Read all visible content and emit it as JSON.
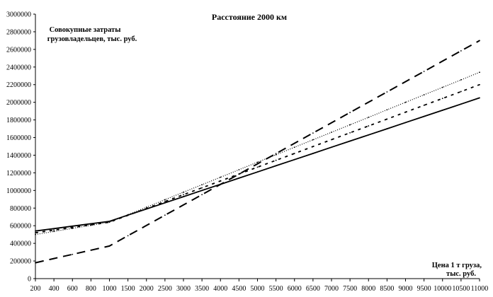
{
  "chart_data": {
    "type": "line",
    "title": "Расстояние 2000 км",
    "ylabel": [
      "Совокупные затраты",
      "грузовладельцев, тыс. руб."
    ],
    "xlabel": [
      "Цена 1 т груза,",
      "тыс. руб."
    ],
    "ylim": [
      0,
      3000000
    ],
    "ytick_step": 200000,
    "yticks": [
      "0",
      "200000",
      "400000",
      "600000",
      "800000",
      "1000000",
      "1200000",
      "1400000",
      "1600000",
      "1800000",
      "2000000",
      "2200000",
      "2400000",
      "2600000",
      "2800000",
      "3000000"
    ],
    "categories": [
      "200",
      "400",
      "600",
      "800",
      "1000",
      "1500",
      "2000",
      "2500",
      "3000",
      "3500",
      "4000",
      "4500",
      "5000",
      "5500",
      "6000",
      "6500",
      "7000",
      "7500",
      "8000",
      "8500",
      "9000",
      "9500",
      "10000",
      "10500",
      "11000"
    ],
    "grid": false,
    "legend": "none",
    "series": [
      {
        "name": "solid",
        "style": "solid",
        "values": [
          540000,
          567500,
          595000,
          622500,
          650000,
          720000,
          790000,
          860000,
          930000,
          1000000,
          1070000,
          1140000,
          1210000,
          1280000,
          1350000,
          1420000,
          1490000,
          1560000,
          1630000,
          1700000,
          1770000,
          1840000,
          1910000,
          1980000,
          2050000
        ]
      },
      {
        "name": "dotted",
        "style": "dotted",
        "values": [
          500000,
          535000,
          570000,
          605000,
          640000,
          725000,
          810000,
          895000,
          980000,
          1065000,
          1150000,
          1235000,
          1320000,
          1405000,
          1490000,
          1575000,
          1660000,
          1745000,
          1830000,
          1915000,
          2000000,
          2085000,
          2170000,
          2255000,
          2340000
        ]
      },
      {
        "name": "short-dash",
        "style": "short-dash",
        "values": [
          520000,
          550000,
          580000,
          610000,
          640000,
          718000,
          796000,
          874000,
          952000,
          1030000,
          1108000,
          1186000,
          1264000,
          1342000,
          1420000,
          1498000,
          1576000,
          1654000,
          1732000,
          1810000,
          1888000,
          1966000,
          2044000,
          2122000,
          2200000
        ]
      },
      {
        "name": "long-dash",
        "style": "long-dash",
        "values": [
          180000,
          227500,
          275000,
          322500,
          370000,
          486500,
          603000,
          719500,
          836000,
          952500,
          1069000,
          1185500,
          1302000,
          1418500,
          1535000,
          1651500,
          1768000,
          1884500,
          2001000,
          2117500,
          2234000,
          2350500,
          2467000,
          2583500,
          2700000
        ]
      }
    ]
  }
}
